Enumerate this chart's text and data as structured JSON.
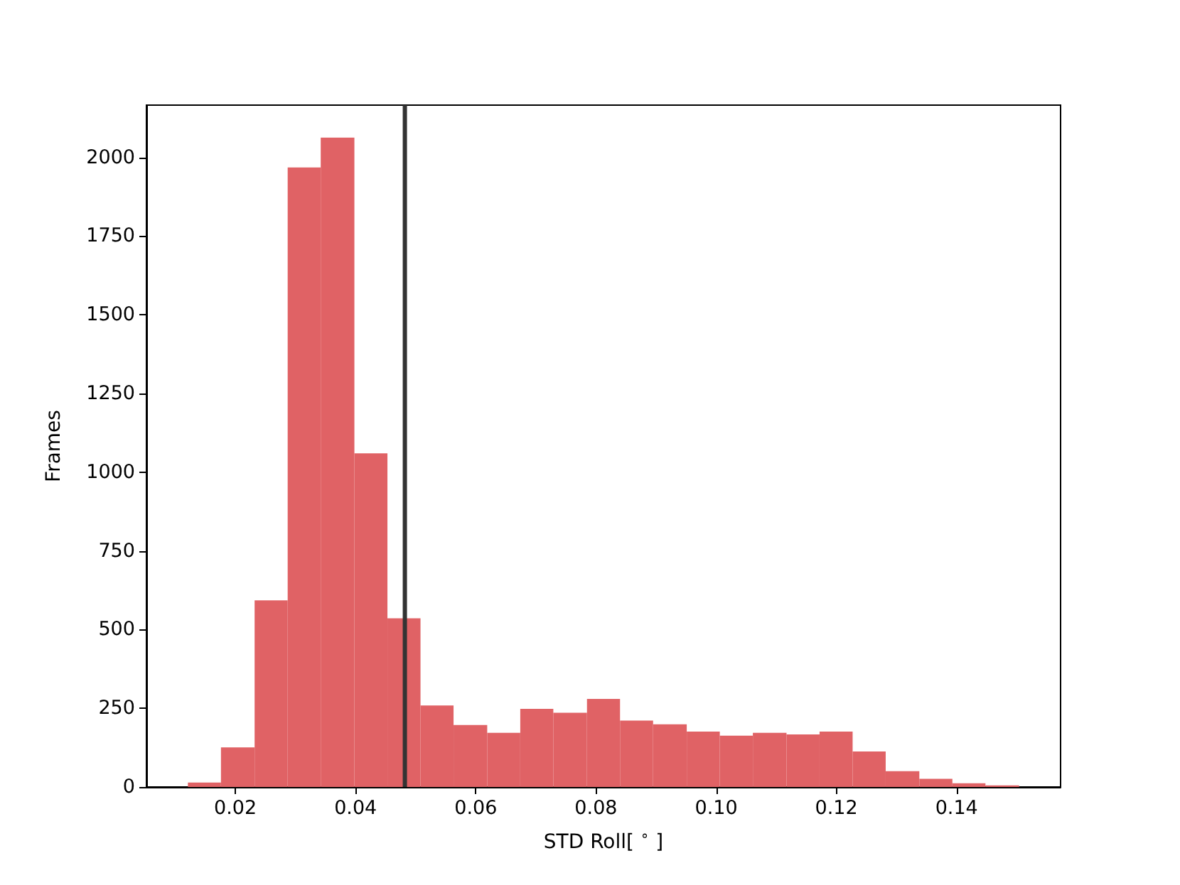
{
  "chart_data": {
    "type": "histogram",
    "xlabel": "STD Roll[ $^{∘}$ ]",
    "ylabel": "Frames",
    "bins": [
      0.0121,
      0.0176,
      0.0232,
      0.0287,
      0.0342,
      0.0398,
      0.0453,
      0.0508,
      0.0563,
      0.0619,
      0.0674,
      0.0729,
      0.0785,
      0.084,
      0.0895,
      0.0951,
      0.1006,
      0.1061,
      0.1117,
      0.1172,
      0.1227,
      0.1282,
      0.1338,
      0.1393,
      0.1448,
      0.1504
    ],
    "values": [
      14,
      126,
      593,
      1968,
      2063,
      1060,
      536,
      259,
      197,
      172,
      248,
      236,
      280,
      211,
      199,
      176,
      163,
      172,
      167,
      176,
      113,
      50,
      26,
      12,
      5
    ],
    "color": "#e06265",
    "xlim": [
      0.0052,
      0.1573
    ],
    "xticks": [
      0.02,
      0.04,
      0.06,
      0.08,
      {
        "value": 0.1,
        "label": "0.10"
      },
      0.12,
      0.14
    ],
    "ylim": [
      0,
      2166
    ],
    "yticks": [
      0,
      250,
      500,
      750,
      1000,
      1250,
      1500,
      1750,
      2000
    ],
    "ref_lines": [
      {
        "axis": "x",
        "value": 0.0482,
        "color": "#333333",
        "line_style": "solid"
      }
    ],
    "grid": false
  }
}
